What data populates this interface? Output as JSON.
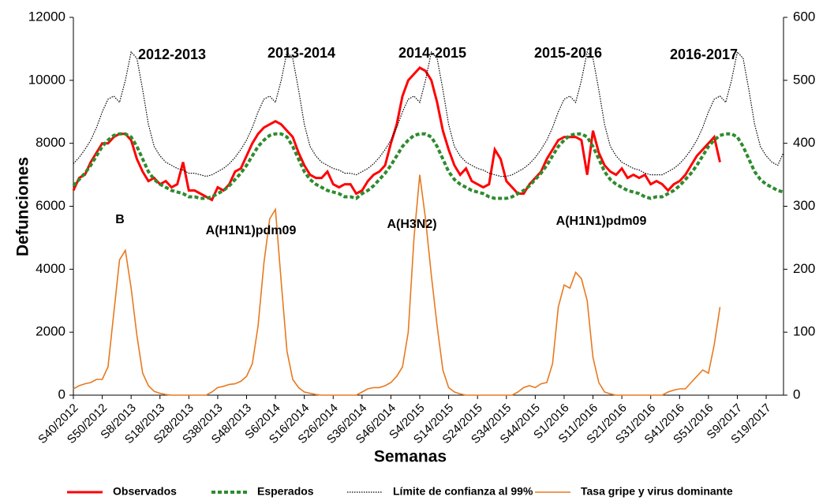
{
  "chart_data": {
    "type": "line",
    "y_label": "Defunciones",
    "x_label": "Semanas",
    "categories": [
      "S40/2012",
      null,
      null,
      null,
      null,
      "S50/2012",
      null,
      null,
      null,
      null,
      "S8/2013",
      null,
      null,
      null,
      null,
      "S18/2013",
      null,
      null,
      null,
      null,
      "S28/2013",
      null,
      null,
      null,
      null,
      "S38/2013",
      null,
      null,
      null,
      null,
      "S48/2013",
      null,
      null,
      null,
      null,
      "S6/2014",
      null,
      null,
      null,
      null,
      "S16/2014",
      null,
      null,
      null,
      null,
      "S26/2014",
      null,
      null,
      null,
      null,
      "S36/2014",
      null,
      null,
      null,
      null,
      "S46/2014",
      null,
      null,
      null,
      null,
      "S4/2015",
      null,
      null,
      null,
      null,
      "S14/2015",
      null,
      null,
      null,
      null,
      "S24/2015",
      null,
      null,
      null,
      null,
      "S34/2015",
      null,
      null,
      null,
      null,
      "S44/2015",
      null,
      null,
      null,
      null,
      "S1/2016",
      null,
      null,
      null,
      null,
      "S11/2016",
      null,
      null,
      null,
      null,
      "S21/2016",
      null,
      null,
      null,
      null,
      "S31/2016",
      null,
      null,
      null,
      null,
      "S41/2016",
      null,
      null,
      null,
      null,
      "S51/2016",
      null,
      null,
      null,
      null,
      "S9/2017",
      null,
      null,
      null,
      null,
      "S19/2017",
      null,
      null,
      null
    ],
    "series": [
      {
        "name": "Observados",
        "color": "#ff0000",
        "values": [
          6500,
          6900,
          7000,
          7400,
          7700,
          8000,
          8000,
          8200,
          8300,
          8300,
          8100,
          7500,
          7100,
          6800,
          6900,
          6700,
          6800,
          6600,
          6700,
          7400,
          6500,
          6500,
          6400,
          6300,
          6200,
          6600,
          6500,
          6700,
          7100,
          7200,
          7600,
          8000,
          8300,
          8500,
          8600,
          8700,
          8600,
          8400,
          8200,
          7700,
          7300,
          7000,
          6900,
          6900,
          7100,
          6700,
          6600,
          6700,
          6700,
          6400,
          6500,
          6800,
          7000,
          7100,
          7300,
          8000,
          8600,
          9500,
          10000,
          10200,
          10400,
          10300,
          10000,
          9300,
          8400,
          7800,
          7300,
          7000,
          7200,
          6800,
          6700,
          6600,
          6700,
          7800,
          7500,
          6800,
          6600,
          6400,
          6400,
          6700,
          6900,
          7100,
          7500,
          7800,
          8100,
          8200,
          8200,
          8200,
          8100,
          7000,
          8400,
          7700,
          7300,
          7100,
          7000,
          7200,
          6900,
          7000,
          6900,
          7000,
          6700,
          6800,
          6700,
          6500,
          6700,
          6800,
          7000,
          7300,
          7600,
          7800,
          8000,
          8200,
          7400,
          null,
          null,
          null,
          null,
          null,
          null,
          null,
          null,
          null,
          null,
          null
        ]
      },
      {
        "name": "Esperados",
        "color": "#2e8b2e",
        "values": [
          6650,
          6850,
          7050,
          7300,
          7600,
          7900,
          8100,
          8250,
          8300,
          8300,
          8200,
          7900,
          7500,
          7100,
          6850,
          6700,
          6600,
          6500,
          6450,
          6400,
          6300,
          6300,
          6250,
          6250,
          6300,
          6400,
          6500,
          6650,
          6850,
          7050,
          7300,
          7600,
          7900,
          8100,
          8250,
          8300,
          8300,
          8200,
          7900,
          7500,
          7100,
          6850,
          6700,
          6600,
          6500,
          6450,
          6400,
          6300,
          6300,
          6250,
          6400,
          6500,
          6650,
          6850,
          7050,
          7300,
          7600,
          7900,
          8100,
          8250,
          8300,
          8300,
          8200,
          7900,
          7500,
          7100,
          6850,
          6700,
          6600,
          6500,
          6450,
          6400,
          6300,
          6250,
          6250,
          6250,
          6300,
          6400,
          6500,
          6650,
          6850,
          7050,
          7300,
          7600,
          7900,
          8100,
          8250,
          8300,
          8300,
          8200,
          7900,
          7500,
          7100,
          6850,
          6700,
          6600,
          6500,
          6450,
          6400,
          6300,
          6250,
          6300,
          6300,
          6400,
          6500,
          6650,
          6850,
          7050,
          7300,
          7600,
          7900,
          8100,
          8250,
          8300,
          8300,
          8200,
          7900,
          7500,
          7100,
          6850,
          6700,
          6600,
          6500,
          6450
        ]
      },
      {
        "name": "Límite de confianza al 99%",
        "color": "#000000",
        "values": [
          7350,
          7550,
          7800,
          8100,
          8500,
          9000,
          9400,
          9500,
          9300,
          10000,
          10900,
          10700,
          9700,
          8600,
          7900,
          7600,
          7400,
          7300,
          7200,
          7150,
          7050,
          7050,
          7000,
          6950,
          7000,
          7100,
          7200,
          7350,
          7550,
          7800,
          8100,
          8500,
          9000,
          9400,
          9500,
          9300,
          10000,
          10900,
          10700,
          9700,
          8600,
          7900,
          7600,
          7400,
          7300,
          7200,
          7150,
          7050,
          7050,
          7000,
          7100,
          7200,
          7350,
          7550,
          7800,
          8100,
          8500,
          9000,
          9400,
          9500,
          9300,
          10000,
          10900,
          10700,
          9700,
          8600,
          7900,
          7600,
          7400,
          7300,
          7200,
          7150,
          7050,
          7000,
          6950,
          6950,
          7000,
          7100,
          7200,
          7350,
          7550,
          7800,
          8100,
          8500,
          9000,
          9400,
          9500,
          9300,
          10000,
          10900,
          10700,
          9700,
          8600,
          7900,
          7600,
          7400,
          7300,
          7200,
          7150,
          7050,
          7000,
          7000,
          7000,
          7100,
          7200,
          7350,
          7550,
          7800,
          8100,
          8500,
          9000,
          9400,
          9500,
          9300,
          10000,
          10900,
          10700,
          9700,
          8600,
          7900,
          7600,
          7400,
          7300,
          7700
        ]
      },
      {
        "name": "Tasa gripe y virus dominante",
        "color": "#e8791e",
        "axis": "y2",
        "values": [
          10,
          15,
          18,
          20,
          25,
          25,
          45,
          130,
          215,
          230,
          170,
          95,
          35,
          15,
          6,
          3,
          1,
          0,
          0,
          0,
          0,
          0,
          0,
          0,
          5,
          12,
          14,
          17,
          18,
          22,
          30,
          50,
          110,
          210,
          280,
          295,
          180,
          70,
          25,
          12,
          5,
          3,
          1,
          0,
          0,
          0,
          0,
          0,
          0,
          0,
          5,
          10,
          12,
          12,
          15,
          20,
          30,
          45,
          100,
          250,
          350,
          280,
          190,
          110,
          40,
          12,
          5,
          2,
          0,
          0,
          0,
          0,
          0,
          0,
          0,
          0,
          0,
          5,
          12,
          15,
          12,
          18,
          20,
          50,
          140,
          175,
          170,
          195,
          185,
          150,
          60,
          20,
          5,
          2,
          0,
          0,
          0,
          0,
          0,
          0,
          0,
          0,
          0,
          5,
          8,
          10,
          10,
          20,
          30,
          40,
          35,
          80,
          140,
          null,
          null,
          null,
          null,
          null,
          null,
          null,
          null,
          null,
          null,
          null
        ]
      }
    ],
    "ylim": [
      0,
      12000
    ],
    "yticks": [
      0,
      2000,
      4000,
      6000,
      8000,
      10000,
      12000
    ],
    "y2lim": [
      0,
      600
    ],
    "y2ticks": [
      0,
      100,
      200,
      300,
      400,
      500,
      600
    ],
    "annotations": [
      "2012-2013",
      "2013-2014",
      "2014-2015",
      "2015-2016",
      "2016-2017",
      "B",
      "A(H1N1)pdm09",
      "A(H3N2)",
      "A(H1N1)pdm09"
    ],
    "legend": "bottom"
  }
}
